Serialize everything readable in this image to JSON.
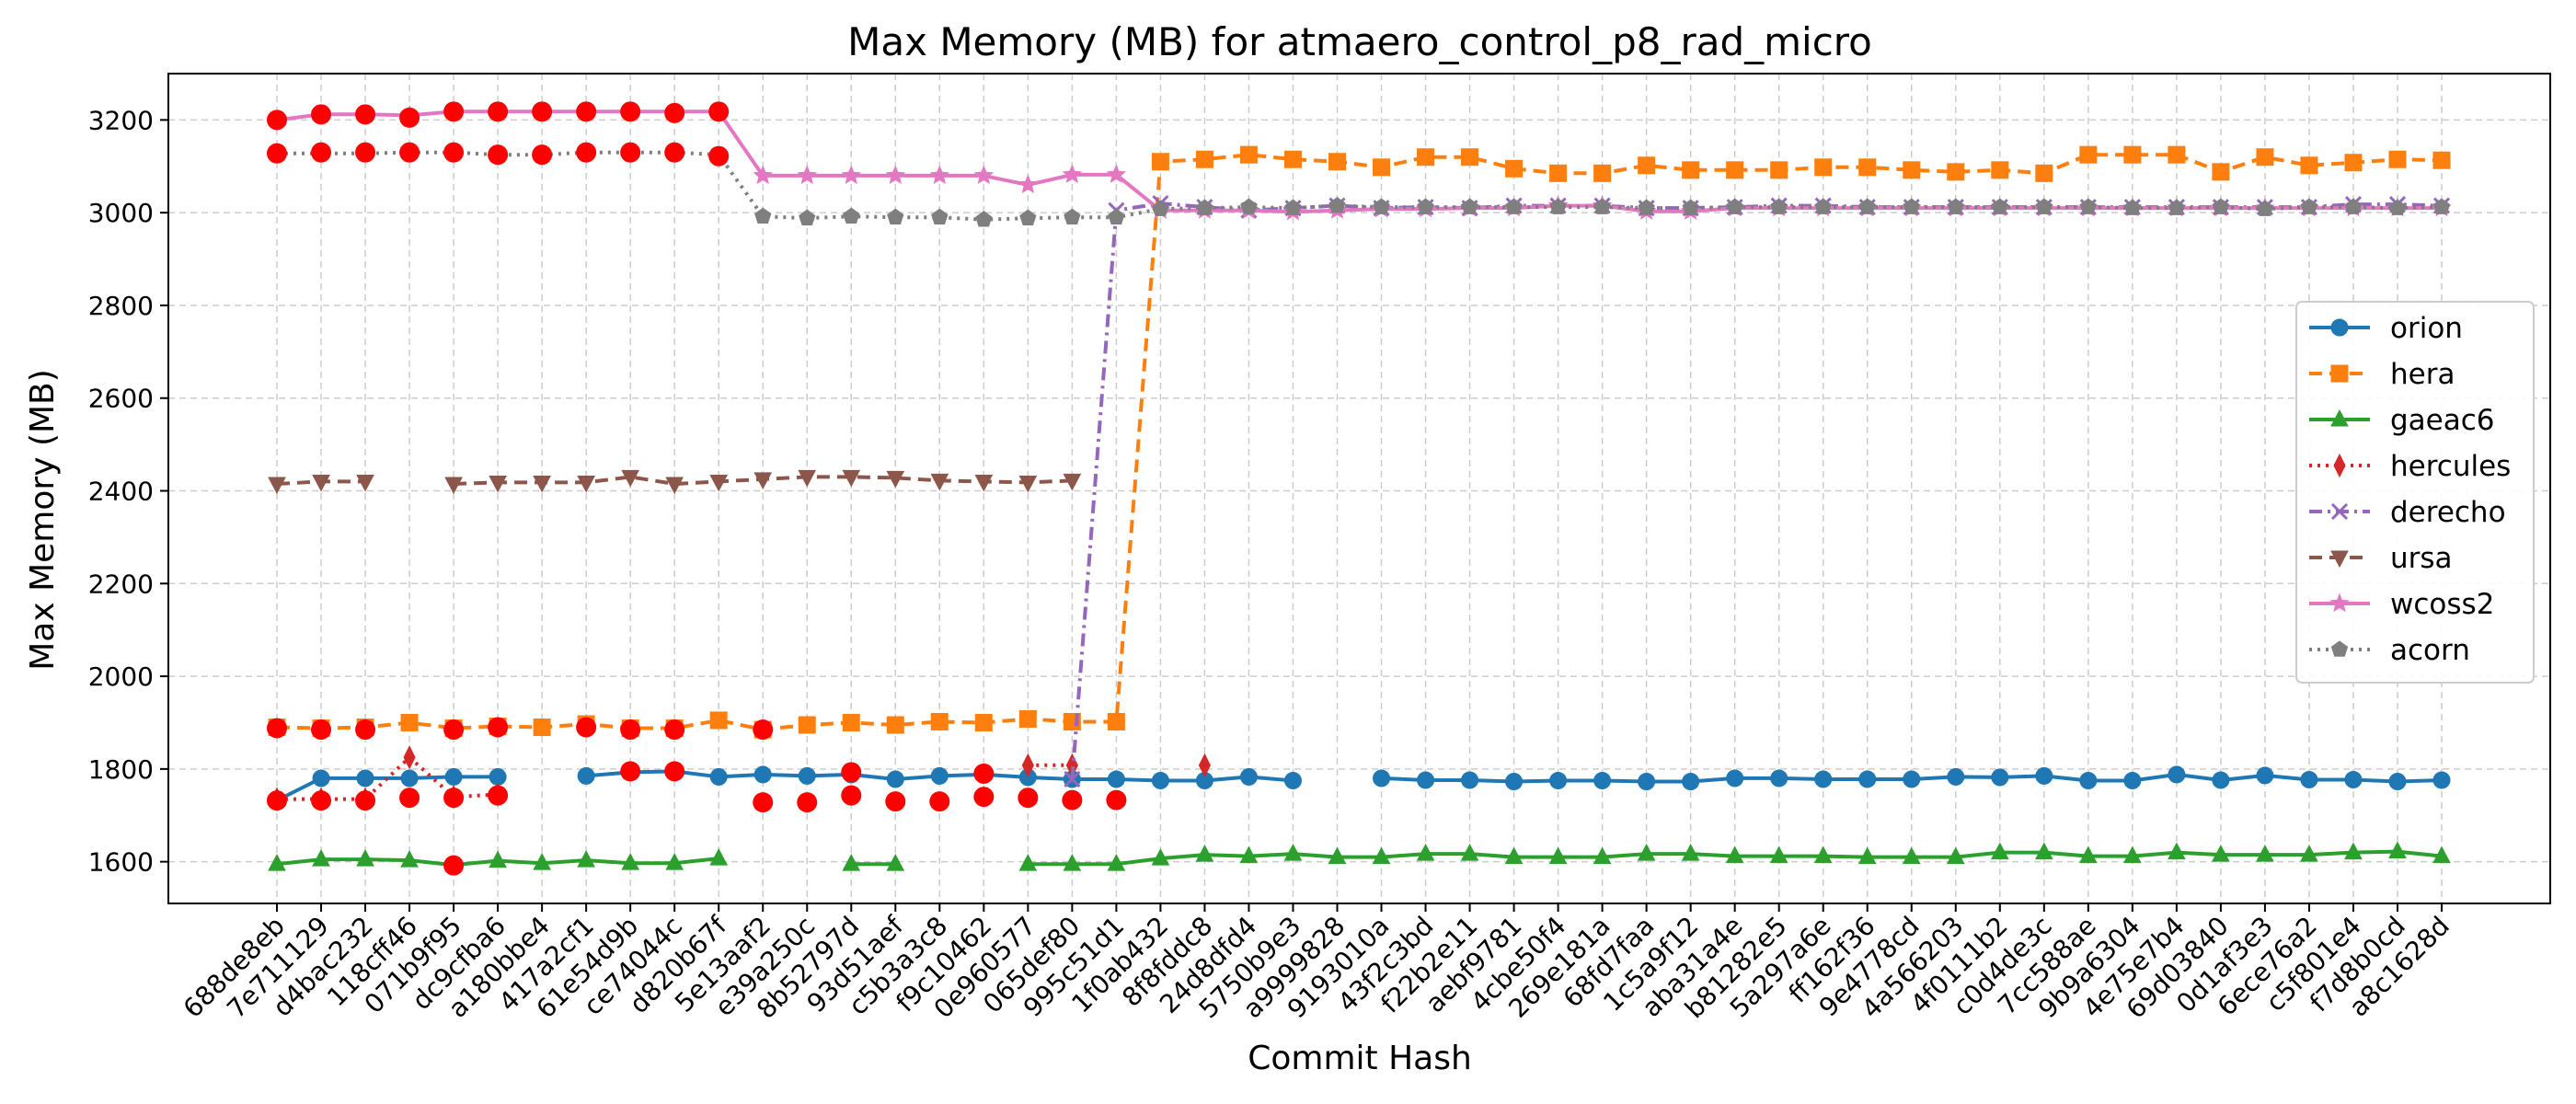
{
  "chart_data": {
    "type": "line",
    "title": "Max Memory (MB) for atmaero_control_p8_rad_micro",
    "xlabel": "Commit Hash",
    "ylabel": "Max Memory (MB)",
    "ylim": [
      1510,
      3300
    ],
    "yticks": [
      1600,
      1800,
      2000,
      2200,
      2400,
      2600,
      2800,
      3000,
      3200
    ],
    "grid": true,
    "legend_position": "center-right",
    "categories": [
      "688de8eb",
      "7e711129",
      "d4bac232",
      "118cff46",
      "071b9f95",
      "dc9cfba6",
      "a180bbe4",
      "417a2cf1",
      "61e54d9b",
      "ce74044c",
      "d820b67f",
      "5e13aaf2",
      "e39a250c",
      "8b52797d",
      "93d51aef",
      "c5b3a3c8",
      "f9c10462",
      "0e960577",
      "065def80",
      "995c51d1",
      "1f0ab432",
      "8f8fddc8",
      "24d8dfd4",
      "5750b9e3",
      "a9999828",
      "9193010a",
      "43f2c3bd",
      "f22b2e11",
      "aebf9781",
      "4cbe50f4",
      "269e181a",
      "68fd7faa",
      "1c5a9f12",
      "aba31a4e",
      "b81282e5",
      "5a297a6e",
      "ff162f36",
      "9e4778cd",
      "4a566203",
      "4f0111b2",
      "c0d4de3c",
      "7cc588ae",
      "9b9a6304",
      "4e75e7b4",
      "69d03840",
      "0d1af3e3",
      "6ece76a2",
      "c5f801e4",
      "f7d8b0cd",
      "a8c1628d"
    ],
    "series": [
      {
        "name": "orion",
        "color": "#1f77b4",
        "marker": "circle",
        "dash": "solid",
        "values": [
          1732,
          1780,
          1780,
          1780,
          1783,
          1783,
          null,
          1785,
          1793,
          1795,
          1783,
          1788,
          1785,
          1788,
          1778,
          1785,
          1788,
          1782,
          1778,
          1778,
          1775,
          1775,
          1783,
          1775,
          null,
          1780,
          1776,
          1776,
          1773,
          1775,
          1775,
          1773,
          1773,
          1780,
          1780,
          1778,
          1778,
          1778,
          1783,
          1782,
          1785,
          1775,
          1775,
          1788,
          1776,
          1786,
          1777,
          1777,
          1773,
          1776
        ]
      },
      {
        "name": "hera",
        "color": "#ff7f0e",
        "marker": "square",
        "dash": "dashed",
        "values": [
          1890,
          1888,
          1890,
          1900,
          1888,
          1892,
          1890,
          1897,
          1888,
          1888,
          1905,
          1885,
          1895,
          1900,
          1895,
          1902,
          1900,
          1908,
          1902,
          1902,
          3110,
          3115,
          3125,
          3115,
          3110,
          3098,
          3120,
          3120,
          3095,
          3085,
          3085,
          3102,
          3092,
          3092,
          3092,
          3098,
          3098,
          3092,
          3088,
          3092,
          3085,
          3125,
          3125,
          3125,
          3088,
          3120,
          3102,
          3108,
          3115,
          3113
        ]
      },
      {
        "name": "gaeac6",
        "color": "#2ca02c",
        "marker": "triangle-up",
        "dash": "solid",
        "values": [
          1595,
          1605,
          1605,
          1603,
          1593,
          1602,
          1597,
          1603,
          1597,
          1597,
          1607,
          null,
          null,
          1595,
          1595,
          null,
          null,
          1595,
          1595,
          1595,
          1607,
          1615,
          1612,
          1617,
          1610,
          1610,
          1617,
          1617,
          1610,
          1610,
          1610,
          1617,
          1617,
          1612,
          1612,
          1612,
          1610,
          1610,
          1610,
          1620,
          1620,
          1612,
          1612,
          1620,
          1615,
          1615,
          1615,
          1620,
          1622,
          1612
        ]
      },
      {
        "name": "hercules",
        "color": "#d62728",
        "marker": "diamond",
        "dash": "dotted",
        "values": [
          1735,
          1735,
          1735,
          1825,
          1740,
          1745,
          null,
          null,
          null,
          null,
          null,
          null,
          null,
          null,
          null,
          null,
          null,
          1808,
          1808,
          null,
          null,
          1808,
          null,
          null,
          null,
          null,
          null,
          null,
          null,
          null,
          null,
          null,
          null,
          null,
          null,
          null,
          null,
          null,
          null,
          null,
          null,
          null,
          null,
          null,
          null,
          null,
          null,
          null,
          null,
          null
        ]
      },
      {
        "name": "derecho",
        "color": "#9467bd",
        "marker": "x",
        "dash": "dashdot",
        "values": [
          null,
          null,
          null,
          null,
          null,
          null,
          null,
          null,
          null,
          null,
          null,
          null,
          null,
          null,
          null,
          null,
          null,
          null,
          1778,
          3005,
          3020,
          3012,
          3005,
          3010,
          3015,
          3010,
          3012,
          3010,
          3015,
          3015,
          3015,
          3010,
          3010,
          3012,
          3015,
          3015,
          3012,
          3012,
          3012,
          3012,
          3012,
          3012,
          3012,
          3012,
          3012,
          3012,
          3012,
          3018,
          3018,
          3015
        ]
      },
      {
        "name": "ursa",
        "color": "#8c564b",
        "marker": "triangle-down",
        "dash": "dashed",
        "values": [
          2415,
          2420,
          2420,
          null,
          2415,
          2418,
          2418,
          2418,
          2430,
          2415,
          2420,
          2425,
          2430,
          2430,
          2428,
          2422,
          2420,
          2418,
          2422,
          null,
          null,
          null,
          null,
          null,
          null,
          null,
          null,
          null,
          null,
          null,
          null,
          null,
          null,
          null,
          null,
          null,
          null,
          null,
          null,
          null,
          null,
          null,
          null,
          null,
          null,
          null,
          null,
          null,
          null,
          null
        ]
      },
      {
        "name": "wcoss2",
        "color": "#e377c2",
        "marker": "star",
        "dash": "solid",
        "values": [
          3200,
          3212,
          3212,
          3210,
          3218,
          3218,
          3218,
          3218,
          3218,
          3218,
          3218,
          3080,
          3080,
          3080,
          3080,
          3080,
          3080,
          3060,
          3082,
          3082,
          3005,
          3005,
          3005,
          3002,
          3005,
          3008,
          3008,
          3010,
          3010,
          3015,
          3015,
          3003,
          3003,
          3010,
          3010,
          3010,
          3010,
          3010,
          3010,
          3010,
          3010,
          3010,
          3010,
          3010,
          3010,
          3010,
          3010,
          3010,
          3010,
          3010
        ]
      },
      {
        "name": "acorn",
        "color": "#7f7f7f",
        "marker": "pentagon",
        "dash": "dotted",
        "values": [
          3128,
          3128,
          3128,
          3130,
          3130,
          3125,
          3125,
          3130,
          3130,
          3130,
          3125,
          2992,
          2988,
          2992,
          2990,
          2990,
          2985,
          2988,
          2990,
          2990,
          3008,
          3010,
          3012,
          3010,
          3015,
          3012,
          3012,
          3012,
          3012,
          3012,
          3012,
          3010,
          3010,
          3012,
          3012,
          3012,
          3012,
          3012,
          3012,
          3012,
          3012,
          3012,
          3010,
          3010,
          3012,
          3008,
          3012,
          3012,
          3010,
          3012
        ]
      }
    ],
    "highlight_points": {
      "color": "#ff0000",
      "points": [
        {
          "category": "688de8eb",
          "value": 3200
        },
        {
          "category": "7e711129",
          "value": 3212
        },
        {
          "category": "d4bac232",
          "value": 3212
        },
        {
          "category": "118cff46",
          "value": 3205
        },
        {
          "category": "071b9f95",
          "value": 3218
        },
        {
          "category": "dc9cfba6",
          "value": 3218
        },
        {
          "category": "a180bbe4",
          "value": 3218
        },
        {
          "category": "417a2cf1",
          "value": 3218
        },
        {
          "category": "61e54d9b",
          "value": 3218
        },
        {
          "category": "ce74044c",
          "value": 3215
        },
        {
          "category": "d820b67f",
          "value": 3218
        },
        {
          "category": "688de8eb",
          "value": 3128
        },
        {
          "category": "7e711129",
          "value": 3130
        },
        {
          "category": "d4bac232",
          "value": 3130
        },
        {
          "category": "118cff46",
          "value": 3130
        },
        {
          "category": "071b9f95",
          "value": 3130
        },
        {
          "category": "dc9cfba6",
          "value": 3125
        },
        {
          "category": "a180bbe4",
          "value": 3125
        },
        {
          "category": "417a2cf1",
          "value": 3130
        },
        {
          "category": "61e54d9b",
          "value": 3130
        },
        {
          "category": "ce74044c",
          "value": 3130
        },
        {
          "category": "d820b67f",
          "value": 3122
        },
        {
          "category": "688de8eb",
          "value": 1888
        },
        {
          "category": "7e711129",
          "value": 1885
        },
        {
          "category": "d4bac232",
          "value": 1885
        },
        {
          "category": "071b9f95",
          "value": 1885
        },
        {
          "category": "dc9cfba6",
          "value": 1890
        },
        {
          "category": "417a2cf1",
          "value": 1890
        },
        {
          "category": "61e54d9b",
          "value": 1885
        },
        {
          "category": "ce74044c",
          "value": 1885
        },
        {
          "category": "5e13aaf2",
          "value": 1885
        },
        {
          "category": "688de8eb",
          "value": 1732
        },
        {
          "category": "7e711129",
          "value": 1732
        },
        {
          "category": "d4bac232",
          "value": 1732
        },
        {
          "category": "118cff46",
          "value": 1738
        },
        {
          "category": "071b9f95",
          "value": 1738
        },
        {
          "category": "dc9cfba6",
          "value": 1743
        },
        {
          "category": "61e54d9b",
          "value": 1795
        },
        {
          "category": "ce74044c",
          "value": 1795
        },
        {
          "category": "5e13aaf2",
          "value": 1728
        },
        {
          "category": "e39a250c",
          "value": 1728
        },
        {
          "category": "8b52797d",
          "value": 1743
        },
        {
          "category": "8b52797d",
          "value": 1793
        },
        {
          "category": "93d51aef",
          "value": 1730
        },
        {
          "category": "c5b3a3c8",
          "value": 1730
        },
        {
          "category": "f9c10462",
          "value": 1740
        },
        {
          "category": "f9c10462",
          "value": 1790
        },
        {
          "category": "0e960577",
          "value": 1738
        },
        {
          "category": "065def80",
          "value": 1733
        },
        {
          "category": "995c51d1",
          "value": 1733
        },
        {
          "category": "071b9f95",
          "value": 1592
        }
      ]
    }
  }
}
